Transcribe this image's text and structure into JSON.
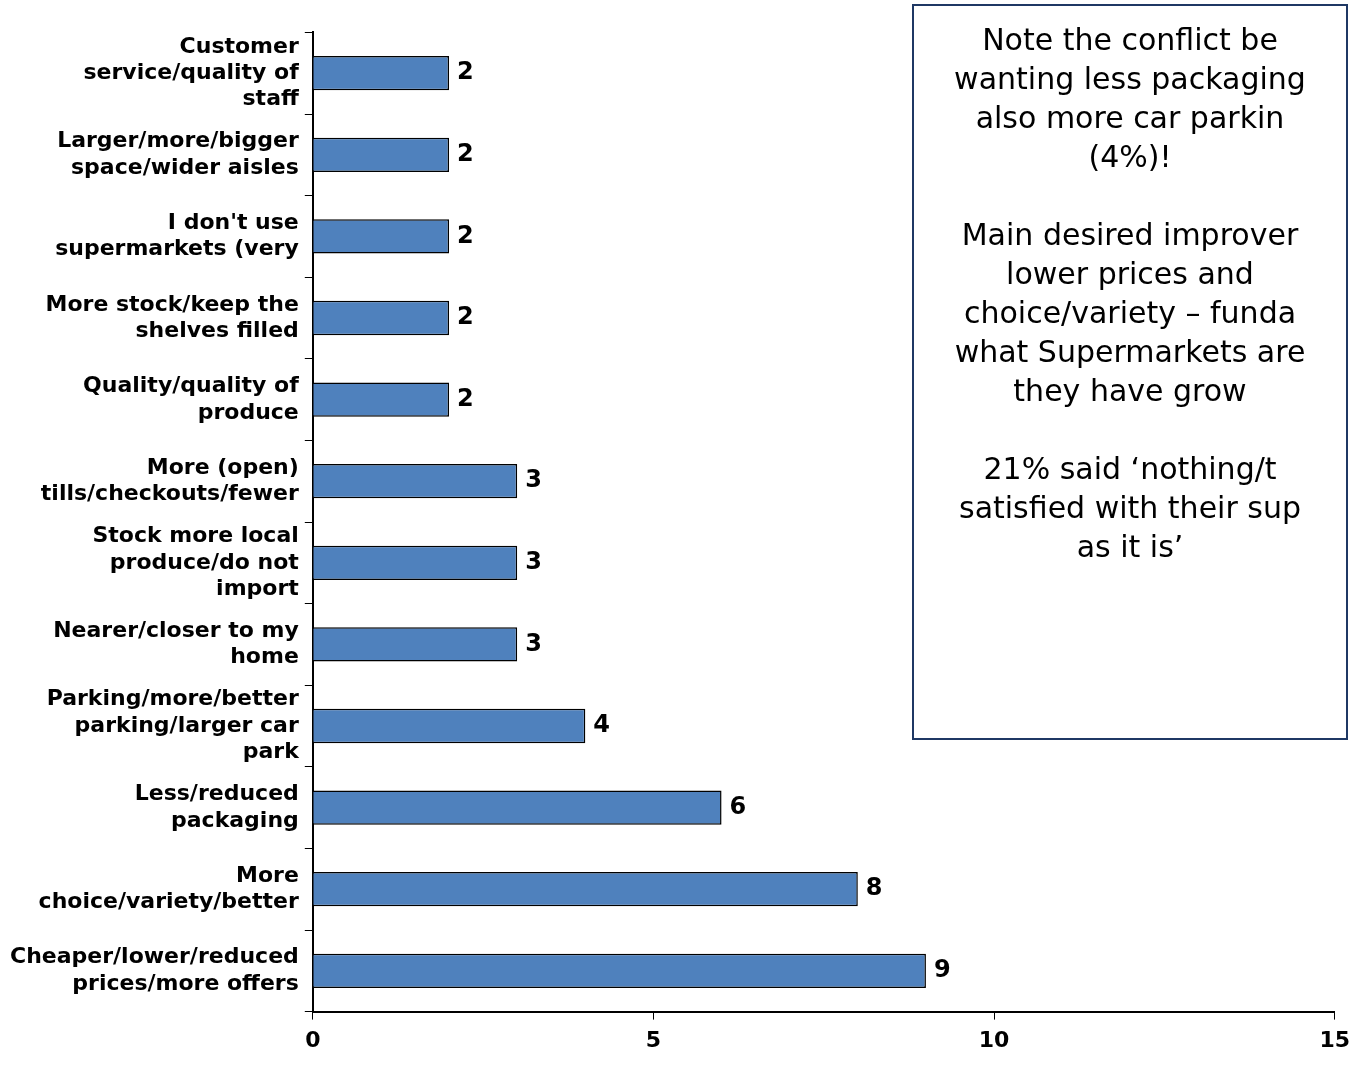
{
  "chart_data": {
    "type": "bar",
    "orientation": "horizontal",
    "categories": [
      "Customer service/quality of staff",
      "Larger/more/bigger space/wider aisles",
      "I don't use supermarkets (very",
      "More stock/keep the shelves filled",
      "Quality/quality of produce",
      "More (open) tills/checkouts/fewer",
      "Stock more local produce/do not import",
      "Nearer/closer to my home",
      "Parking/more/better parking/larger car park",
      "Less/reduced packaging",
      "More choice/variety/better",
      "Cheaper/lower/reduced prices/more offers"
    ],
    "values": [
      2,
      2,
      2,
      2,
      2,
      3,
      3,
      3,
      4,
      6,
      8,
      9
    ],
    "color": "#4f81bd",
    "xlim": [
      0,
      15
    ],
    "xticks": [
      0,
      5,
      10,
      15
    ],
    "grid": false,
    "legend": false,
    "data_labels": true,
    "annotations": [
      "Note the conflict be\nwanting less packaging\nalso more car parkin\n(4%)!\n\nMain desired improver\nlower prices and\nchoice/variety – funda\nwhat Supermarkets are\nthey have grow\n\n21% said ‘nothing/t\nsatisfied with their sup\nas it is’"
    ]
  }
}
